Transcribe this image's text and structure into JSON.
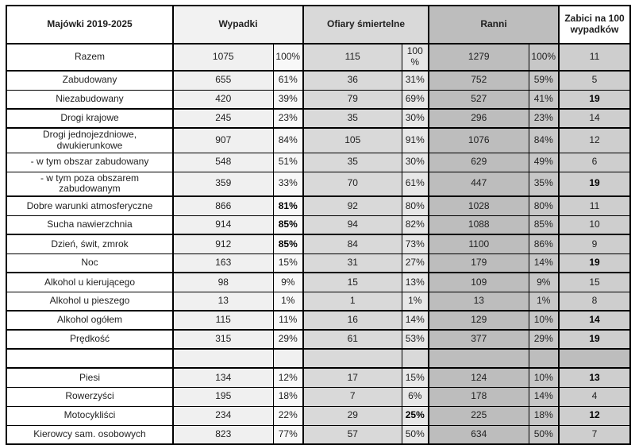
{
  "table": {
    "corner_label": "Majówki 2019-2025",
    "column_groups": [
      {
        "label": "Wypadki"
      },
      {
        "label": "Ofiary śmiertelne"
      },
      {
        "label": "Ranni"
      },
      {
        "label": "Zabici na 100 wypadków"
      }
    ],
    "colors": {
      "wypadki_fill": "#f2f2f2",
      "ofiary_fill": "#d9d9d9",
      "ranni_fill": "#bdbdbd",
      "zabici_fill": "#cecece",
      "border": "#000000"
    },
    "rows": [
      {
        "label": "Razem",
        "cells": [
          "1075",
          "100%",
          "115",
          "100 %",
          "1279",
          "100%",
          "11"
        ],
        "bold": [],
        "thick_bottom": true,
        "empty": false
      },
      {
        "label": "Zabudowany",
        "cells": [
          "655",
          "61%",
          "36",
          "31%",
          "752",
          "59%",
          "5"
        ],
        "bold": [],
        "thick_bottom": false,
        "empty": false
      },
      {
        "label": "Niezabudowany",
        "cells": [
          "420",
          "39%",
          "79",
          "69%",
          "527",
          "41%",
          "19"
        ],
        "bold": [
          6
        ],
        "thick_bottom": true,
        "empty": false
      },
      {
        "label": "Drogi krajowe",
        "cells": [
          "245",
          "23%",
          "35",
          "30%",
          "296",
          "23%",
          "14"
        ],
        "bold": [],
        "thick_bottom": true,
        "empty": false
      },
      {
        "label": "Drogi jednojezdniowe, dwukierunkowe",
        "cells": [
          "907",
          "84%",
          "105",
          "91%",
          "1076",
          "84%",
          "12"
        ],
        "bold": [],
        "thick_bottom": false,
        "empty": false
      },
      {
        "label": "- w tym obszar zabudowany",
        "cells": [
          "548",
          "51%",
          "35",
          "30%",
          "629",
          "49%",
          "6"
        ],
        "bold": [],
        "thick_bottom": false,
        "empty": false
      },
      {
        "label": "- w tym poza obszarem zabudowanym",
        "cells": [
          "359",
          "33%",
          "70",
          "61%",
          "447",
          "35%",
          "19"
        ],
        "bold": [
          6
        ],
        "thick_bottom": true,
        "empty": false
      },
      {
        "label": "Dobre warunki atmosferyczne",
        "cells": [
          "866",
          "81%",
          "92",
          "80%",
          "1028",
          "80%",
          "11"
        ],
        "bold": [
          1
        ],
        "thick_bottom": false,
        "empty": false
      },
      {
        "label": "Sucha nawierzchnia",
        "cells": [
          "914",
          "85%",
          "94",
          "82%",
          "1088",
          "85%",
          "10"
        ],
        "bold": [
          1
        ],
        "thick_bottom": true,
        "empty": false
      },
      {
        "label": "Dzień, świt, zmrok",
        "cells": [
          "912",
          "85%",
          "84",
          "73%",
          "1100",
          "86%",
          "9"
        ],
        "bold": [
          1
        ],
        "thick_bottom": false,
        "empty": false
      },
      {
        "label": "Noc",
        "cells": [
          "163",
          "15%",
          "31",
          "27%",
          "179",
          "14%",
          "19"
        ],
        "bold": [
          6
        ],
        "thick_bottom": true,
        "empty": false
      },
      {
        "label": "Alkohol u kierującego",
        "cells": [
          "98",
          "9%",
          "15",
          "13%",
          "109",
          "9%",
          "15"
        ],
        "bold": [],
        "thick_bottom": false,
        "empty": false
      },
      {
        "label": "Alkohol u pieszego",
        "cells": [
          "13",
          "1%",
          "1",
          "1%",
          "13",
          "1%",
          "8"
        ],
        "bold": [],
        "thick_bottom": true,
        "empty": false
      },
      {
        "label": "Alkohol ogółem",
        "cells": [
          "115",
          "11%",
          "16",
          "14%",
          "129",
          "10%",
          "14"
        ],
        "bold": [
          6
        ],
        "thick_bottom": true,
        "empty": false
      },
      {
        "label": "Prędkość",
        "cells": [
          "315",
          "29%",
          "61",
          "53%",
          "377",
          "29%",
          "19"
        ],
        "bold": [
          6
        ],
        "thick_bottom": true,
        "empty": false
      },
      {
        "label": "",
        "cells": [
          "",
          "",
          "",
          "",
          "",
          "",
          ""
        ],
        "bold": [],
        "thick_bottom": true,
        "empty": true
      },
      {
        "label": "Piesi",
        "cells": [
          "134",
          "12%",
          "17",
          "15%",
          "124",
          "10%",
          "13"
        ],
        "bold": [
          6
        ],
        "thick_bottom": false,
        "empty": false
      },
      {
        "label": "Rowerzyści",
        "cells": [
          "195",
          "18%",
          "7",
          "6%",
          "178",
          "14%",
          "4"
        ],
        "bold": [],
        "thick_bottom": false,
        "empty": false
      },
      {
        "label": "Motocykliści",
        "cells": [
          "234",
          "22%",
          "29",
          "25%",
          "225",
          "18%",
          "12"
        ],
        "bold": [
          3,
          6
        ],
        "thick_bottom": false,
        "empty": false
      },
      {
        "label": "Kierowcy sam. osobowych",
        "cells": [
          "823",
          "77%",
          "57",
          "50%",
          "634",
          "50%",
          "7"
        ],
        "bold": [],
        "thick_bottom": false,
        "empty": false
      }
    ]
  }
}
